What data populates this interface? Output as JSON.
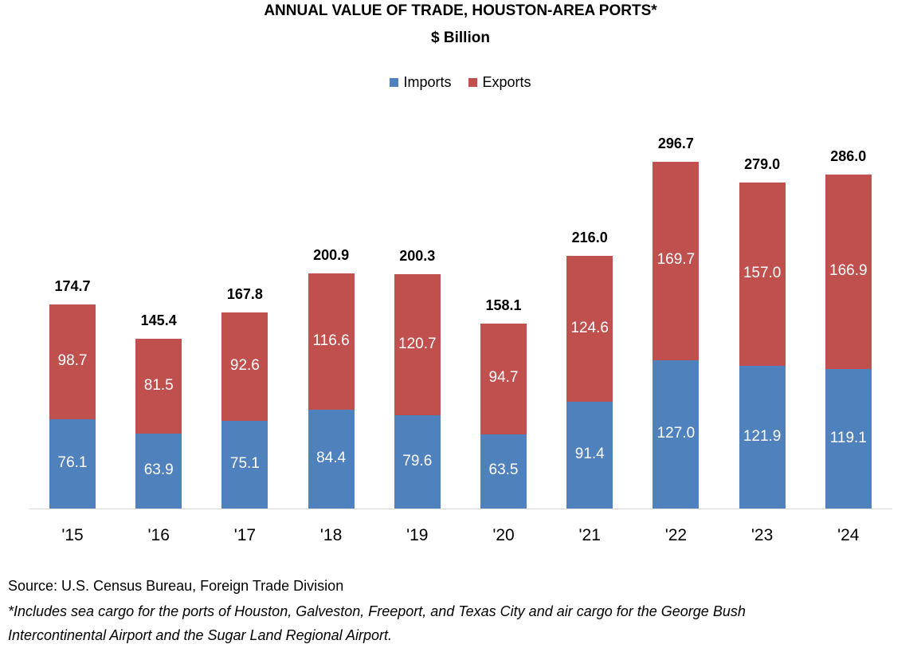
{
  "chart_data": {
    "type": "bar",
    "stacked": true,
    "title": "ANNUAL VALUE OF TRADE, HOUSTON-AREA PORTS*",
    "subtitle": "$ Billion",
    "categories": [
      "'15",
      "'16",
      "'17",
      "'18",
      "'19",
      "'20",
      "'21",
      "'22",
      "'23",
      "'24"
    ],
    "series": [
      {
        "name": "Imports",
        "color": "#4F81BD",
        "values": [
          76.1,
          63.9,
          75.1,
          84.4,
          79.6,
          63.5,
          91.4,
          127.0,
          121.9,
          119.1
        ]
      },
      {
        "name": "Exports",
        "color": "#C0504D",
        "values": [
          98.7,
          81.5,
          92.6,
          116.6,
          120.7,
          94.7,
          124.6,
          169.7,
          157.0,
          166.9
        ]
      }
    ],
    "totals": [
      "174.7",
      "145.4",
      "167.8",
      "200.9",
      "200.3",
      "158.1",
      "216.0",
      "296.7",
      "279.0",
      "286.0"
    ],
    "legend_position": "top",
    "grid": false,
    "ylim": [
      0,
      300
    ]
  },
  "notes": {
    "source": "Source: U.S. Census Bureau, Foreign Trade Division",
    "footnote_line1": "*Includes sea cargo for the ports of Houston, Galveston, Freeport, and Texas City and air cargo for the George Bush",
    "footnote_line2": "Intercontinental Airport and the Sugar Land Regional Airport."
  }
}
